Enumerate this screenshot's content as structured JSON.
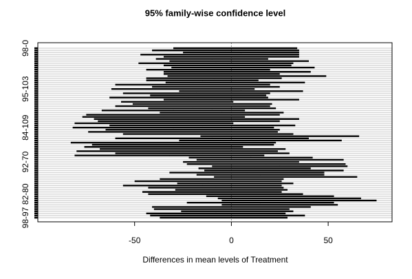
{
  "chart_data": {
    "type": "interval",
    "title": "95% family-wise confidence level",
    "x_label": "Differences in mean levels of Treatment",
    "categories": [
      "98-0",
      null,
      null,
      null,
      null,
      null,
      null,
      null,
      null,
      null,
      null,
      null,
      null,
      null,
      null,
      null,
      null,
      null,
      null,
      "95-103",
      null,
      null,
      null,
      null,
      null,
      null,
      null,
      null,
      null,
      null,
      null,
      null,
      null,
      null,
      null,
      null,
      null,
      "84-109",
      null,
      null,
      null,
      null,
      null,
      null,
      null,
      null,
      null,
      null,
      null,
      null,
      null,
      null,
      null,
      "92-70",
      null,
      null,
      null,
      null,
      null,
      null,
      null,
      null,
      null,
      null,
      null,
      null,
      null,
      null,
      "82-80",
      null,
      null,
      null,
      null,
      null,
      null,
      null,
      null,
      null,
      null,
      "98-97"
    ],
    "diff": [
      2,
      -3,
      5,
      -6,
      0,
      -10,
      4,
      -8,
      -2,
      6,
      -12,
      3,
      -5,
      8,
      -9,
      -15,
      2,
      -20,
      -8,
      -25,
      5,
      -18,
      -12,
      -22,
      0,
      -28,
      -15,
      -20,
      -10,
      -30,
      -5,
      -25,
      -35,
      -18,
      -22,
      -40,
      -15,
      -30,
      -20,
      -25,
      -12,
      25,
      -10,
      15,
      -30,
      -25,
      -35,
      -20,
      -28,
      -15,
      -32,
      10,
      20,
      5,
      18,
      25,
      12,
      22,
      8,
      15,
      28,
      -5,
      -12,
      2,
      -15,
      -8,
      0,
      -10,
      -3,
      20,
      30,
      35,
      15,
      25,
      0,
      -5,
      3,
      -8,
      -2,
      -4
    ],
    "lwr": [
      -30,
      -41,
      -25,
      -47,
      -35,
      -39,
      -32,
      -48,
      -35,
      -31,
      -44,
      -35,
      -35,
      -33,
      -44,
      -44,
      -34,
      -60,
      -41,
      -62,
      -27,
      -56,
      -42,
      -63,
      -35,
      -57,
      -51,
      -60,
      -43,
      -67,
      -37,
      -75,
      -77,
      -71,
      -69,
      -81,
      -63,
      -82,
      -65,
      -74,
      -56,
      -16,
      -60,
      -27,
      -83,
      -72,
      -76,
      -68,
      -80,
      -60,
      -81,
      -22,
      -18,
      -25,
      -23,
      -10,
      -17,
      -14,
      -32,
      -18,
      -9,
      -37,
      -50,
      -28,
      -56,
      -43,
      -29,
      -46,
      -43,
      -13,
      -7,
      -5,
      -23,
      -5,
      -41,
      -40,
      -26,
      -44,
      -42,
      -37
    ],
    "upr": [
      34,
      35,
      35,
      35,
      35,
      19,
      40,
      32,
      31,
      43,
      20,
      41,
      25,
      49,
      26,
      14,
      38,
      20,
      25,
      12,
      37,
      20,
      18,
      19,
      35,
      1,
      21,
      20,
      23,
      7,
      27,
      25,
      7,
      35,
      25,
      1,
      33,
      22,
      25,
      24,
      32,
      66,
      40,
      57,
      23,
      22,
      6,
      28,
      24,
      30,
      17,
      42,
      58,
      35,
      59,
      60,
      41,
      58,
      48,
      48,
      65,
      27,
      26,
      32,
      26,
      27,
      29,
      26,
      37,
      53,
      67,
      75,
      53,
      55,
      41,
      30,
      32,
      28,
      38,
      29
    ],
    "color": "#000000",
    "xlim": [
      -100,
      83
    ],
    "xticks": [
      -50,
      0,
      50
    ]
  }
}
